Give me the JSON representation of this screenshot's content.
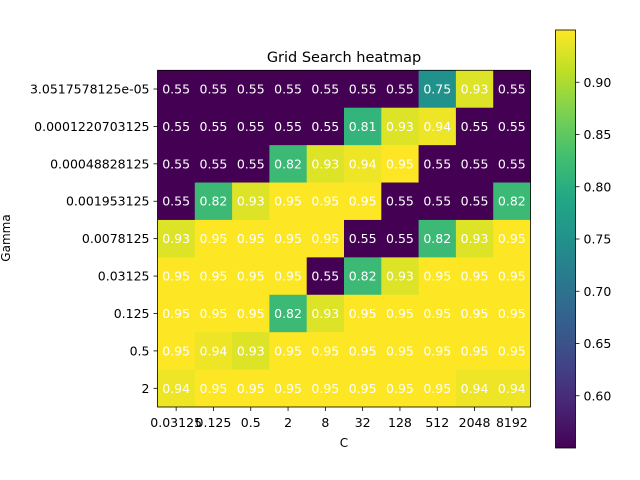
{
  "chart_data": {
    "type": "heatmap",
    "title": "Grid Search heatmap",
    "xlabel": "C",
    "ylabel": "Gamma",
    "x_categories": [
      "0.03125",
      "0.125",
      "0.5",
      "2",
      "8",
      "32",
      "128",
      "512",
      "2048",
      "8192"
    ],
    "y_categories": [
      "3.0517578125e-05",
      "0.0001220703125",
      "0.00048828125",
      "0.001953125",
      "0.0078125",
      "0.03125",
      "0.125",
      "0.5",
      "2"
    ],
    "values": [
      [
        0.55,
        0.55,
        0.55,
        0.55,
        0.55,
        0.55,
        0.55,
        0.75,
        0.93,
        0.55
      ],
      [
        0.55,
        0.55,
        0.55,
        0.55,
        0.55,
        0.81,
        0.93,
        0.94,
        0.55,
        0.55
      ],
      [
        0.55,
        0.55,
        0.55,
        0.82,
        0.93,
        0.94,
        0.95,
        0.55,
        0.55,
        0.55
      ],
      [
        0.55,
        0.82,
        0.93,
        0.95,
        0.95,
        0.95,
        0.55,
        0.55,
        0.55,
        0.82
      ],
      [
        0.93,
        0.95,
        0.95,
        0.95,
        0.95,
        0.55,
        0.55,
        0.82,
        0.93,
        0.95
      ],
      [
        0.95,
        0.95,
        0.95,
        0.95,
        0.55,
        0.82,
        0.93,
        0.95,
        0.95,
        0.95
      ],
      [
        0.95,
        0.95,
        0.95,
        0.82,
        0.93,
        0.95,
        0.95,
        0.95,
        0.95,
        0.95
      ],
      [
        0.95,
        0.94,
        0.93,
        0.95,
        0.95,
        0.95,
        0.95,
        0.95,
        0.95,
        0.95
      ],
      [
        0.94,
        0.95,
        0.95,
        0.95,
        0.95,
        0.95,
        0.95,
        0.95,
        0.94,
        0.94
      ]
    ],
    "colormap": "viridis",
    "vmin": 0.55,
    "vmax": 0.95,
    "colorbar_ticks": [
      "0.60",
      "0.65",
      "0.70",
      "0.75",
      "0.80",
      "0.85",
      "0.90"
    ],
    "colorbar_tick_values": [
      0.6,
      0.65,
      0.7,
      0.75,
      0.8,
      0.85,
      0.9
    ],
    "cell_text_color": "#ffffff",
    "grid": false
  }
}
